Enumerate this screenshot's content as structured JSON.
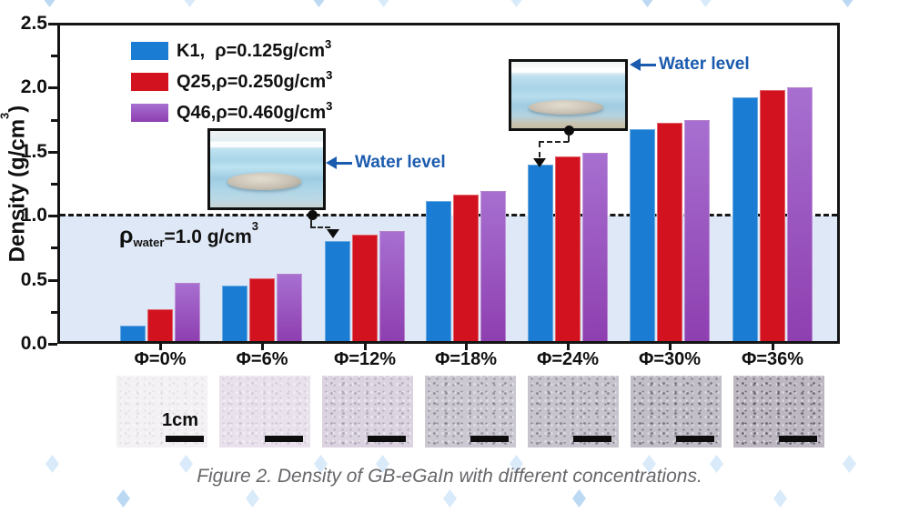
{
  "caption": "Figure 2. Density of GB-eGaIn with different concentrations.",
  "watermark": {
    "color_light": "#d9eafa",
    "color_mid": "#bcd9f3"
  },
  "chart_data": {
    "type": "bar",
    "title": "",
    "xlabel": "",
    "ylabel": {
      "text": "Density (g/cm",
      "sup": "3",
      "post": ")"
    },
    "ylim": [
      0.0,
      2.5
    ],
    "yticks": [
      "0.0",
      "0.5",
      "1.0",
      "1.5",
      "2.0",
      "2.5"
    ],
    "y_minor_step": 0.25,
    "grid": false,
    "legend_position": "top-left",
    "categories": [
      "Φ=0%",
      "Φ=6%",
      "Φ=12%",
      "Φ=18%",
      "Φ=24%",
      "Φ=30%",
      "Φ=36%"
    ],
    "series": [
      {
        "name": "K1",
        "legend": "K1,  ρ=0.125g/cm",
        "legend_sup": "3",
        "color": "#1a7cd2",
        "values": [
          0.125,
          0.44,
          0.79,
          1.11,
          1.4,
          1.68,
          1.93
        ]
      },
      {
        "name": "Q25",
        "legend": "Q25,ρ=0.250g/cm",
        "legend_sup": "3",
        "color": "#d2121e",
        "values": [
          0.25,
          0.5,
          0.84,
          1.16,
          1.46,
          1.73,
          1.99
        ]
      },
      {
        "name": "Q46",
        "legend": "Q46,ρ=0.460g/cm",
        "legend_sup": "3",
        "color": "#8e3fb0",
        "color_top": "#a76fd0",
        "values": [
          0.46,
          0.53,
          0.87,
          1.19,
          1.49,
          1.75,
          2.01
        ]
      }
    ],
    "reference_line": {
      "value": 1.0,
      "rho": "ρ",
      "sub": "water",
      "rest": "=1.0 g/cm",
      "sup": "3",
      "line_color": "#151515",
      "shade_color": "#dfe8f6"
    },
    "annotations": [
      {
        "text": "Water level",
        "color": "#1b5bad",
        "points_to": "Φ=12% K1 bar"
      },
      {
        "text": "Water level",
        "color": "#1b5bad",
        "points_to": "Φ=24% K1 bar"
      }
    ]
  },
  "photos": {
    "scale_label": "1cm",
    "items": [
      {
        "phi": "0",
        "base": "#f3f1f3",
        "dark": "rgba(190,184,196,0.28)",
        "light": "rgba(255,255,255,0.50)"
      },
      {
        "phi": "6",
        "base": "#e9e2ec",
        "dark": "rgba(176,166,188,0.38)",
        "light": "rgba(255,255,255,0.55)"
      },
      {
        "phi": "12",
        "base": "#dbd4e0",
        "dark": "rgba(138,130,150,0.50)",
        "light": "rgba(250,248,252,0.60)"
      },
      {
        "phi": "18",
        "base": "#ccc8d1",
        "dark": "rgba(104,99,114,0.55)",
        "light": "rgba(240,238,244,0.65)"
      },
      {
        "phi": "24",
        "base": "#c8c4cd",
        "dark": "rgba(99,94,110,0.60)",
        "light": "rgba(238,236,242,0.65)"
      },
      {
        "phi": "30",
        "base": "#c2bec7",
        "dark": "rgba(90,86,101,0.65)",
        "light": "rgba(236,234,240,0.65)"
      },
      {
        "phi": "36",
        "base": "#bcb7c1",
        "dark": "rgba(79,75,90,0.70)",
        "light": "rgba(233,231,238,0.70)"
      }
    ]
  }
}
